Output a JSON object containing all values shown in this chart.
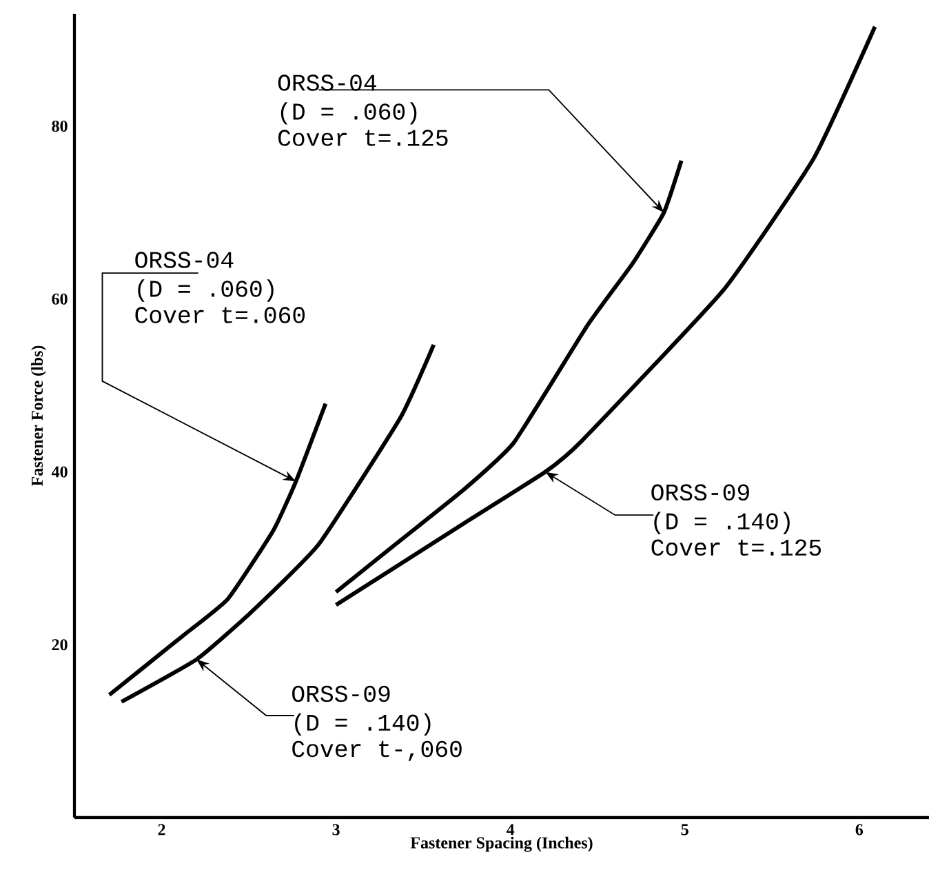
{
  "chart_data": {
    "type": "line",
    "xlabel": "Fastener Spacing (Inches)",
    "ylabel": "Fastener Force (lbs)",
    "xlim": [
      1.5,
      6.4
    ],
    "ylim": [
      0,
      93
    ],
    "xticks": [
      2,
      3,
      4,
      5,
      6
    ],
    "yticks": [
      20,
      40,
      60,
      80
    ],
    "marker": "none",
    "line_style": "solid",
    "series": [
      {
        "color": "#000000",
        "x": [
          1.7,
          2.12,
          2.38,
          2.64,
          2.77,
          2.94
        ],
        "values": [
          14.2,
          21.0,
          25.3,
          33.2,
          38.9,
          47.9
        ]
      },
      {
        "color": "#000000",
        "x": [
          1.77,
          2.2,
          2.51,
          2.9,
          3.37,
          3.56
        ],
        "values": [
          13.4,
          18.3,
          23.7,
          31.6,
          46.3,
          54.7
        ]
      },
      {
        "color": "#000000",
        "x": [
          3.0,
          3.34,
          3.73,
          4.02,
          4.44,
          4.7,
          4.88,
          4.98
        ],
        "values": [
          26.1,
          31.6,
          37.9,
          43.4,
          56.9,
          64.1,
          70.0,
          76.0
        ]
      },
      {
        "color": "#000000",
        "x": [
          3.0,
          3.73,
          4.2,
          4.41,
          5.22,
          5.74,
          6.09
        ],
        "values": [
          24.6,
          34.0,
          40.0,
          43.6,
          61.0,
          76.3,
          91.5
        ]
      }
    ],
    "annotations": [
      {
        "text": "ORSS-04",
        "x": 2.77,
        "y": 38.9
      },
      "(D = .060)",
      "Cover t=.060",
      {
        "text": "ORSS-09",
        "x": 2.2,
        "y": 18.3
      },
      "(D = .140)",
      "Cover t-,060",
      {
        "text": "ORSS-04",
        "x": 4.88,
        "y": 70.0
      },
      "(D = .060)",
      "Cover t=.125",
      {
        "text": "ORSS-09",
        "x": 4.2,
        "y": 40.0
      },
      "(D = .140)",
      "Cover t=.125"
    ]
  }
}
